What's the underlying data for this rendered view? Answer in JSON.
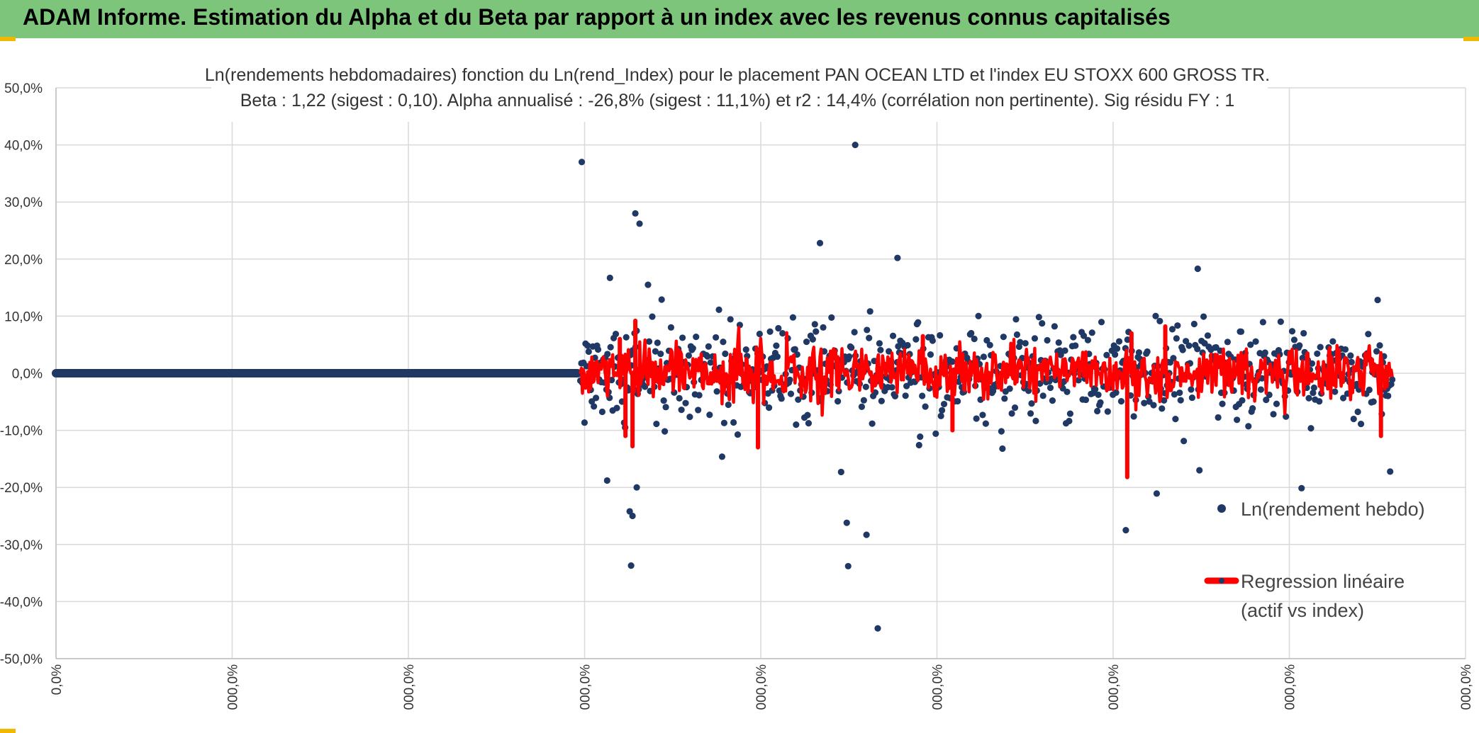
{
  "header": {
    "title": "ADAM Informe. Estimation du Alpha et du Beta par rapport à un index avec les revenus connus capitalisés"
  },
  "colors": {
    "header_bg": "#7dc57b",
    "points": "#203864",
    "regression": "#ff0000",
    "grid": "#d9d9d9"
  },
  "chart_data": {
    "type": "scatter",
    "title_line1": "Ln(rendements hebdomadaires) fonction du Ln(rend_Index) pour le placement PAN OCEAN LTD et l'index EU STOXX 600 GROSS TR.",
    "title_line2": "Beta : 1,22 (sigest : 0,10).  Alpha annualisé : -26,8% (sigest : 11,1%) et r2 : 14,4% (corrélation non pertinente). Sig résidu FY : 1",
    "y_ticks": [
      "50,0%",
      "40,0%",
      "30,0%",
      "20,0%",
      "10,0%",
      "0,0%",
      "-10,0%",
      "-20,0%",
      "-30,0%",
      "-40,0%",
      "-50,0%"
    ],
    "x_ticks": [
      "0,0%",
      "000,0%",
      "000,0%",
      "000,0%",
      "000,0%",
      "000,0%",
      "000,0%",
      "000,0%",
      "000,0%"
    ],
    "ylim": [
      -0.5,
      0.5
    ],
    "xlim": [
      0,
      1
    ],
    "grid": true,
    "legend_position": "right",
    "series": [
      {
        "name": "Ln(rendement hebdo)",
        "kind": "points",
        "notable_values": [
          0.37,
          0.4,
          0.28,
          0.262,
          0.228,
          0.202,
          0.183,
          0.167,
          0.155,
          -0.275,
          -0.283,
          -0.337,
          -0.338,
          -0.447,
          -0.25,
          -0.24,
          -0.188,
          -0.18
        ]
      },
      {
        "name": "Regression linéaire",
        "name_line2": "(actif vs index)",
        "kind": "line",
        "notable_values": [
          0.092,
          0.08,
          0.07,
          -0.128,
          -0.11,
          -0.13,
          -0.18,
          -0.11
        ]
      }
    ],
    "notable_points": [
      {
        "x": 0.373,
        "y": 0.37
      },
      {
        "x": 0.567,
        "y": 0.4
      },
      {
        "x": 0.411,
        "y": 0.28
      },
      {
        "x": 0.414,
        "y": 0.262
      },
      {
        "x": 0.542,
        "y": 0.228
      },
      {
        "x": 0.597,
        "y": 0.202
      },
      {
        "x": 0.81,
        "y": 0.183
      },
      {
        "x": 0.393,
        "y": 0.167
      },
      {
        "x": 0.42,
        "y": 0.155
      },
      {
        "x": 0.759,
        "y": -0.275
      },
      {
        "x": 0.575,
        "y": -0.283
      },
      {
        "x": 0.408,
        "y": -0.337
      },
      {
        "x": 0.562,
        "y": -0.338
      },
      {
        "x": 0.583,
        "y": -0.447
      },
      {
        "x": 0.409,
        "y": -0.25
      },
      {
        "x": 0.407,
        "y": -0.242
      },
      {
        "x": 0.391,
        "y": -0.188
      },
      {
        "x": 0.412,
        "y": -0.2
      },
      {
        "x": 0.561,
        "y": -0.262
      },
      {
        "x": 0.557,
        "y": -0.173
      }
    ],
    "regression_spikes": [
      {
        "x": 0.39,
        "y": 0.02
      },
      {
        "x": 0.4,
        "y": 0.06
      },
      {
        "x": 0.411,
        "y": 0.092
      },
      {
        "x": 0.409,
        "y": -0.128
      },
      {
        "x": 0.404,
        "y": -0.11
      },
      {
        "x": 0.498,
        "y": -0.13
      },
      {
        "x": 0.76,
        "y": -0.182
      },
      {
        "x": 0.763,
        "y": 0.07
      },
      {
        "x": 0.787,
        "y": 0.082
      },
      {
        "x": 0.94,
        "y": -0.11
      },
      {
        "x": 0.636,
        "y": -0.1
      },
      {
        "x": 0.615,
        "y": 0.065
      }
    ]
  }
}
